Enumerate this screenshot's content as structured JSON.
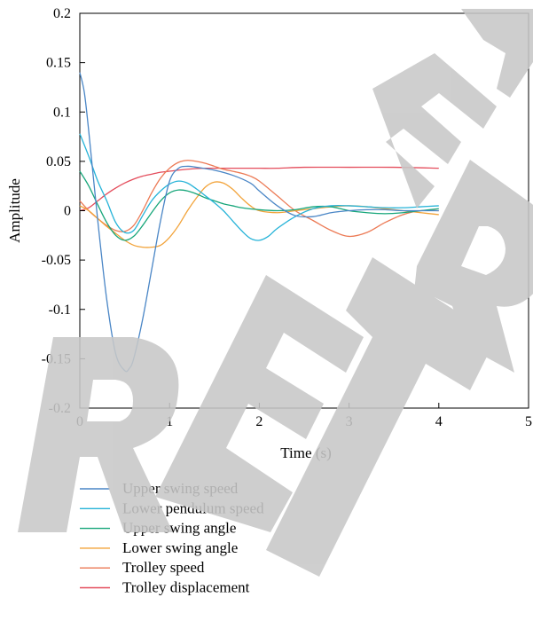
{
  "chart_data": {
    "type": "line",
    "xlabel": "Time (s)",
    "ylabel": "Amplitude",
    "xlim": [
      0,
      5
    ],
    "ylim": [
      -0.2,
      0.2
    ],
    "xticks": [
      0,
      1,
      2,
      3,
      4,
      5
    ],
    "xtick_labels": [
      "0",
      "1",
      "2",
      "3",
      "4",
      "5"
    ],
    "yticks": [
      -0.2,
      -0.15,
      -0.1,
      -0.05,
      0,
      0.05,
      0.1,
      0.15,
      0.2
    ],
    "ytick_labels": [
      "-0.2",
      "-0.15",
      "-0.1",
      "-0.05",
      "0",
      "0.05",
      "0.1",
      "0.15",
      "0.2"
    ],
    "grid": false,
    "legend_position": "bottom",
    "watermark": "RETRACTED",
    "series": [
      {
        "name": "Upper swing speed",
        "color": "#4a86c6",
        "x": [
          0,
          0.05,
          0.1,
          0.2,
          0.3,
          0.4,
          0.5,
          0.55,
          0.6,
          0.7,
          0.8,
          0.9,
          1.0,
          1.1,
          1.2,
          1.3,
          1.5,
          1.7,
          1.9,
          2.0,
          2.2,
          2.4,
          2.6,
          2.8,
          3.0,
          3.2,
          3.4,
          3.6,
          3.8,
          4.0
        ],
        "y": [
          0.14,
          0.12,
          0.08,
          -0.01,
          -0.09,
          -0.145,
          -0.162,
          -0.16,
          -0.15,
          -0.11,
          -0.06,
          -0.01,
          0.03,
          0.043,
          0.045,
          0.044,
          0.041,
          0.036,
          0.028,
          0.02,
          0.005,
          -0.005,
          -0.006,
          -0.002,
          0.0,
          0.001,
          0.001,
          0.0,
          0.0,
          0.0
        ]
      },
      {
        "name": "Lower pendulum speed",
        "color": "#26b3d8",
        "x": [
          0,
          0.1,
          0.2,
          0.3,
          0.4,
          0.5,
          0.6,
          0.7,
          0.8,
          0.9,
          1.0,
          1.1,
          1.2,
          1.3,
          1.4,
          1.5,
          1.6,
          1.7,
          1.8,
          1.9,
          2.0,
          2.1,
          2.2,
          2.4,
          2.6,
          2.8,
          3.0,
          3.2,
          3.4,
          3.6,
          3.8,
          4.0
        ],
        "y": [
          0.078,
          0.055,
          0.03,
          0.01,
          -0.012,
          -0.022,
          -0.02,
          -0.005,
          0.01,
          0.02,
          0.027,
          0.03,
          0.028,
          0.022,
          0.015,
          0.008,
          0.0,
          -0.01,
          -0.02,
          -0.028,
          -0.03,
          -0.026,
          -0.018,
          -0.006,
          0.002,
          0.005,
          0.005,
          0.004,
          0.003,
          0.003,
          0.004,
          0.005
        ]
      },
      {
        "name": "Upper swing angle",
        "color": "#17a67a",
        "x": [
          0,
          0.1,
          0.2,
          0.3,
          0.4,
          0.5,
          0.6,
          0.7,
          0.8,
          0.9,
          1.0,
          1.1,
          1.2,
          1.3,
          1.4,
          1.5,
          1.6,
          1.7,
          1.8,
          2.0,
          2.2,
          2.4,
          2.6,
          2.8,
          3.0,
          3.2,
          3.4,
          3.6,
          3.8,
          4.0
        ],
        "y": [
          0.04,
          0.025,
          0.006,
          -0.012,
          -0.025,
          -0.03,
          -0.026,
          -0.015,
          -0.002,
          0.01,
          0.018,
          0.021,
          0.02,
          0.017,
          0.013,
          0.01,
          0.007,
          0.005,
          0.003,
          0.001,
          0.0,
          0.001,
          0.004,
          0.004,
          0.0,
          -0.002,
          -0.003,
          -0.002,
          0.0,
          0.002
        ]
      },
      {
        "name": "Lower swing angle",
        "color": "#f2a33a",
        "x": [
          0,
          0.1,
          0.2,
          0.3,
          0.4,
          0.5,
          0.6,
          0.7,
          0.8,
          0.9,
          1.0,
          1.1,
          1.2,
          1.3,
          1.4,
          1.5,
          1.6,
          1.7,
          1.8,
          1.9,
          2.0,
          2.2,
          2.4,
          2.6,
          2.8,
          3.0,
          3.2,
          3.4,
          3.6,
          3.8,
          4.0
        ],
        "y": [
          0.005,
          0.0,
          -0.008,
          -0.016,
          -0.023,
          -0.03,
          -0.035,
          -0.037,
          -0.037,
          -0.035,
          -0.027,
          -0.015,
          0.0,
          0.013,
          0.024,
          0.029,
          0.028,
          0.022,
          0.013,
          0.005,
          0.0,
          -0.002,
          0.0,
          0.002,
          0.004,
          0.005,
          0.004,
          0.002,
          0.0,
          -0.002,
          -0.004
        ]
      },
      {
        "name": "Trolley speed",
        "color": "#ec7a55",
        "x": [
          0,
          0.1,
          0.2,
          0.3,
          0.4,
          0.5,
          0.6,
          0.7,
          0.8,
          0.9,
          1.0,
          1.1,
          1.2,
          1.3,
          1.4,
          1.5,
          1.6,
          1.7,
          1.8,
          1.9,
          2.0,
          2.2,
          2.4,
          2.6,
          2.8,
          3.0,
          3.2,
          3.4,
          3.6,
          3.8,
          4.0
        ],
        "y": [
          0.01,
          0.0,
          -0.008,
          -0.015,
          -0.02,
          -0.021,
          -0.015,
          0.0,
          0.018,
          0.033,
          0.043,
          0.049,
          0.051,
          0.05,
          0.048,
          0.045,
          0.042,
          0.04,
          0.038,
          0.035,
          0.03,
          0.015,
          0.0,
          -0.01,
          -0.02,
          -0.026,
          -0.022,
          -0.012,
          -0.004,
          0.0,
          0.0
        ]
      },
      {
        "name": "Trolley displacement",
        "color": "#e44d5c",
        "x": [
          0,
          0.1,
          0.2,
          0.3,
          0.4,
          0.5,
          0.6,
          0.7,
          0.8,
          0.9,
          1.0,
          1.2,
          1.4,
          1.6,
          1.8,
          2.0,
          2.2,
          2.5,
          3.0,
          3.5,
          4.0
        ],
        "y": [
          0.0,
          0.003,
          0.01,
          0.017,
          0.023,
          0.028,
          0.032,
          0.035,
          0.037,
          0.039,
          0.04,
          0.042,
          0.043,
          0.043,
          0.043,
          0.043,
          0.043,
          0.044,
          0.044,
          0.044,
          0.043
        ]
      }
    ]
  }
}
